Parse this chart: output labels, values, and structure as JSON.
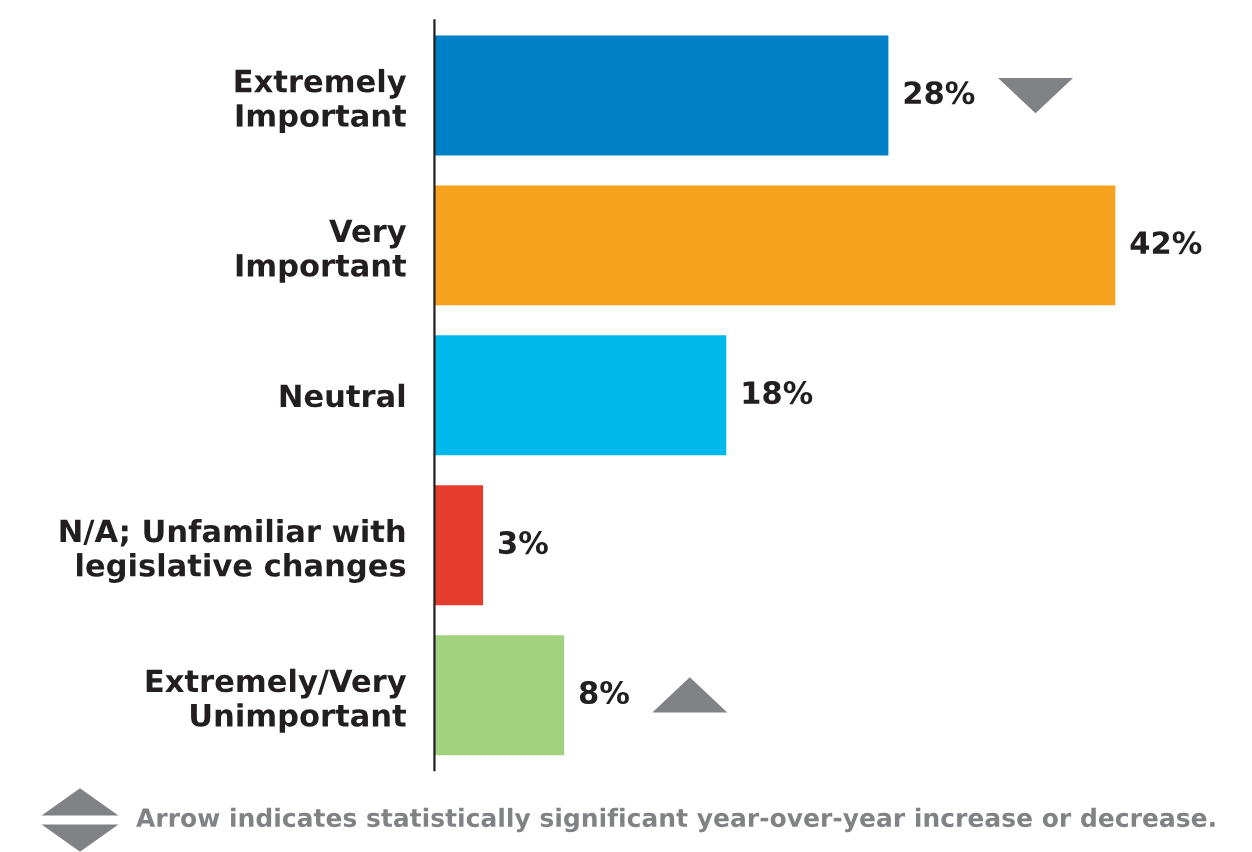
{
  "chart_data": {
    "type": "bar",
    "orientation": "horizontal",
    "categories": [
      "Extremely\nImportant",
      "Very\nImportant",
      "Neutral",
      "N/A; Unfamiliar with\nlegislative changes",
      "Extremely/Very\nUnimportant"
    ],
    "values": [
      28,
      42,
      18,
      3,
      8
    ],
    "colors": [
      "#0080c6",
      "#f7a21f",
      "#00b9ec",
      "#e53c2e",
      "#a3d27f"
    ],
    "value_labels": [
      "28%",
      "42%",
      "18%",
      "3%",
      "8%"
    ],
    "annotations": [
      "Arrow indicates statistically significant year-over-year increase or decrease."
    ],
    "grid": false,
    "legend": false
  }
}
